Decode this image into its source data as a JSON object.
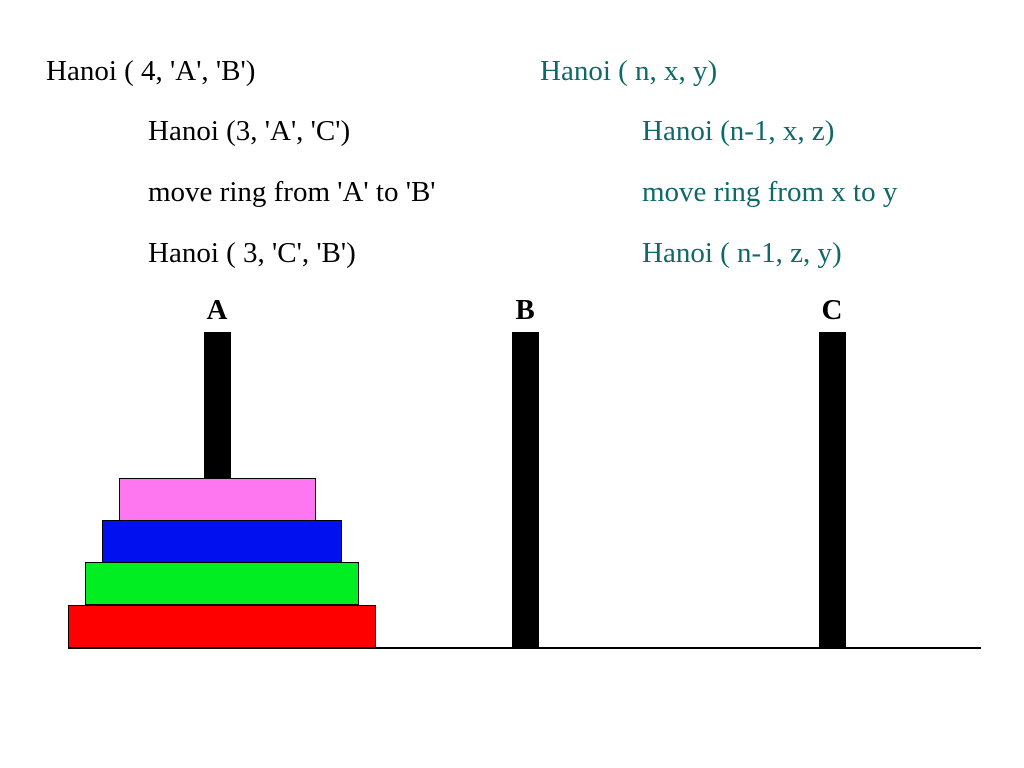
{
  "code": {
    "left": [
      "Hanoi ( 4, 'A', 'B')",
      "Hanoi (3, 'A', 'C')",
      "move ring from 'A' to 'B'",
      "Hanoi ( 3, 'C', 'B')"
    ],
    "right": [
      "Hanoi ( n, x, y)",
      "Hanoi (n-1, x, z)",
      "move ring from x to y",
      "Hanoi ( n-1, z, y)"
    ]
  },
  "pegs": [
    {
      "label": "A"
    },
    {
      "label": "B"
    },
    {
      "label": "C"
    }
  ],
  "disks": [
    {
      "color": "#ff77f0"
    },
    {
      "color": "#0010ee"
    },
    {
      "color": "#00ee22"
    },
    {
      "color": "#ff0000"
    }
  ],
  "colors": {
    "code_left": "#000000",
    "code_right": "#106868"
  }
}
